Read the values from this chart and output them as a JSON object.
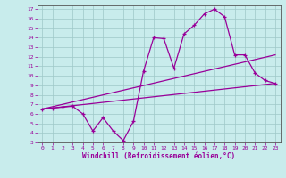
{
  "xlabel": "Windchill (Refroidissement éolien,°C)",
  "bg_color": "#c8ecec",
  "line_color": "#990099",
  "grid_color": "#9ec8c8",
  "xlim": [
    -0.5,
    23.5
  ],
  "ylim": [
    3,
    17.4
  ],
  "xticks": [
    0,
    1,
    2,
    3,
    4,
    5,
    6,
    7,
    8,
    9,
    10,
    11,
    12,
    13,
    14,
    15,
    16,
    17,
    18,
    19,
    20,
    21,
    22,
    23
  ],
  "yticks": [
    3,
    4,
    5,
    6,
    7,
    8,
    9,
    10,
    11,
    12,
    13,
    14,
    15,
    16,
    17
  ],
  "series1_x": [
    0,
    1,
    2,
    3,
    4,
    5,
    6,
    7,
    8,
    9,
    10,
    11,
    12,
    13,
    14,
    15,
    16,
    17,
    18,
    19,
    20,
    21,
    22,
    23
  ],
  "series1_y": [
    6.5,
    6.6,
    6.7,
    6.8,
    6.0,
    4.2,
    5.6,
    4.2,
    3.2,
    5.2,
    10.5,
    14.0,
    13.9,
    10.8,
    14.4,
    15.3,
    16.5,
    17.0,
    16.2,
    12.2,
    12.2,
    10.3,
    9.5,
    9.2
  ],
  "series2_x": [
    0,
    23
  ],
  "series2_y": [
    6.5,
    9.2
  ],
  "series3_x": [
    0,
    23
  ],
  "series3_y": [
    6.5,
    12.2
  ]
}
